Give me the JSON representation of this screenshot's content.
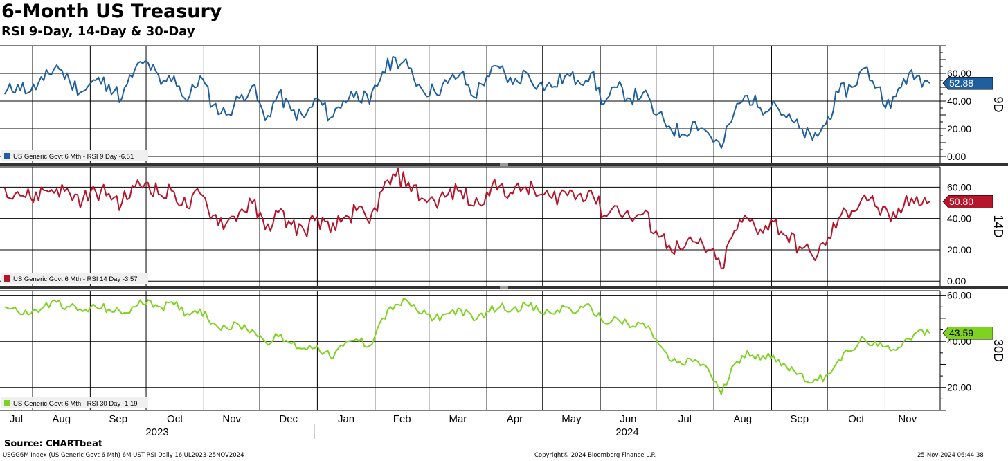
{
  "title": "6-Month US Treasury",
  "subtitle": "RSI 9-Day, 14-Day & 30-Day",
  "source": "Source: CHARTbeat",
  "footer": {
    "left": "USGG6M Index (US Generic Govt 6 Mth) 6M UST RSI  Daily 16JUL2023-25NOV2024",
    "center": "Copyright© 2024 Bloomberg Finance L.P.",
    "right": "25-Nov-2024 06:44:38"
  },
  "chart_data": {
    "type": "line",
    "x_months": [
      "Jul",
      "Aug",
      "Sep",
      "Oct",
      "Nov",
      "Dec",
      "Jan",
      "Feb",
      "Mar",
      "Apr",
      "May",
      "Jun",
      "Jul",
      "Aug",
      "Sep",
      "Oct",
      "Nov"
    ],
    "x_years": [
      "2023",
      "2024"
    ],
    "x_range": [
      "2023-07-16",
      "2024-11-25"
    ],
    "grid": true,
    "panels": [
      {
        "axis_label": "9D",
        "ylim": [
          -5,
          80
        ],
        "yticks": [
          "60.00",
          "40.00",
          "20.00",
          "0.00"
        ],
        "ytick_values": [
          60,
          40,
          20,
          0
        ],
        "color": "#1f5fa0",
        "last_value": "52.88",
        "legend": "US Generic Govt 6 Mth - RSI 9 Day -6.51",
        "series": [
          {
            "d": "2023-07-17",
            "v": 45
          },
          {
            "d": "2023-07-24",
            "v": 52
          },
          {
            "d": "2023-07-31",
            "v": 47
          },
          {
            "d": "2023-08-07",
            "v": 55
          },
          {
            "d": "2023-08-14",
            "v": 66
          },
          {
            "d": "2023-08-21",
            "v": 54
          },
          {
            "d": "2023-08-28",
            "v": 47
          },
          {
            "d": "2023-09-04",
            "v": 55
          },
          {
            "d": "2023-09-11",
            "v": 52
          },
          {
            "d": "2023-09-18",
            "v": 42
          },
          {
            "d": "2023-09-25",
            "v": 63
          },
          {
            "d": "2023-10-02",
            "v": 68
          },
          {
            "d": "2023-10-09",
            "v": 52
          },
          {
            "d": "2023-10-16",
            "v": 58
          },
          {
            "d": "2023-10-23",
            "v": 40
          },
          {
            "d": "2023-10-30",
            "v": 58
          },
          {
            "d": "2023-11-06",
            "v": 37
          },
          {
            "d": "2023-11-13",
            "v": 30
          },
          {
            "d": "2023-11-20",
            "v": 42
          },
          {
            "d": "2023-11-27",
            "v": 51
          },
          {
            "d": "2023-12-04",
            "v": 26
          },
          {
            "d": "2023-12-11",
            "v": 45
          },
          {
            "d": "2023-12-18",
            "v": 33
          },
          {
            "d": "2023-12-25",
            "v": 28
          },
          {
            "d": "2024-01-01",
            "v": 42
          },
          {
            "d": "2024-01-08",
            "v": 28
          },
          {
            "d": "2024-01-15",
            "v": 40
          },
          {
            "d": "2024-01-22",
            "v": 47
          },
          {
            "d": "2024-01-29",
            "v": 38
          },
          {
            "d": "2024-02-05",
            "v": 61
          },
          {
            "d": "2024-02-12",
            "v": 71
          },
          {
            "d": "2024-02-19",
            "v": 64
          },
          {
            "d": "2024-02-26",
            "v": 49
          },
          {
            "d": "2024-03-04",
            "v": 47
          },
          {
            "d": "2024-03-11",
            "v": 53
          },
          {
            "d": "2024-03-18",
            "v": 60
          },
          {
            "d": "2024-03-25",
            "v": 43
          },
          {
            "d": "2024-04-01",
            "v": 58
          },
          {
            "d": "2024-04-08",
            "v": 64
          },
          {
            "d": "2024-04-15",
            "v": 52
          },
          {
            "d": "2024-04-22",
            "v": 61
          },
          {
            "d": "2024-04-29",
            "v": 52
          },
          {
            "d": "2024-05-06",
            "v": 50
          },
          {
            "d": "2024-05-13",
            "v": 58
          },
          {
            "d": "2024-05-20",
            "v": 55
          },
          {
            "d": "2024-05-27",
            "v": 60
          },
          {
            "d": "2024-06-03",
            "v": 38
          },
          {
            "d": "2024-06-10",
            "v": 50
          },
          {
            "d": "2024-06-17",
            "v": 42
          },
          {
            "d": "2024-06-24",
            "v": 46
          },
          {
            "d": "2024-07-01",
            "v": 30
          },
          {
            "d": "2024-07-08",
            "v": 22
          },
          {
            "d": "2024-07-15",
            "v": 16
          },
          {
            "d": "2024-07-22",
            "v": 25
          },
          {
            "d": "2024-07-29",
            "v": 17
          },
          {
            "d": "2024-08-05",
            "v": 6
          },
          {
            "d": "2024-08-12",
            "v": 32
          },
          {
            "d": "2024-08-19",
            "v": 44
          },
          {
            "d": "2024-08-26",
            "v": 35
          },
          {
            "d": "2024-09-02",
            "v": 40
          },
          {
            "d": "2024-09-09",
            "v": 28
          },
          {
            "d": "2024-09-16",
            "v": 20
          },
          {
            "d": "2024-09-23",
            "v": 12
          },
          {
            "d": "2024-09-30",
            "v": 23
          },
          {
            "d": "2024-10-07",
            "v": 46
          },
          {
            "d": "2024-10-14",
            "v": 50
          },
          {
            "d": "2024-10-21",
            "v": 64
          },
          {
            "d": "2024-10-28",
            "v": 50
          },
          {
            "d": "2024-11-04",
            "v": 35
          },
          {
            "d": "2024-11-11",
            "v": 56
          },
          {
            "d": "2024-11-18",
            "v": 58
          },
          {
            "d": "2024-11-25",
            "v": 52.88
          }
        ]
      },
      {
        "axis_label": "14D",
        "ylim": [
          -3,
          73
        ],
        "yticks": [
          "60.00",
          "40.00",
          "20.00",
          "0.00"
        ],
        "ytick_values": [
          60,
          40,
          20,
          0
        ],
        "color": "#b5162c",
        "last_value": "50.80",
        "legend": "US Generic Govt 6 Mth - RSI 14 Day -3.57",
        "series": [
          {
            "d": "2023-07-17",
            "v": 60
          },
          {
            "d": "2023-07-24",
            "v": 57
          },
          {
            "d": "2023-07-31",
            "v": 53
          },
          {
            "d": "2023-08-07",
            "v": 58
          },
          {
            "d": "2023-08-14",
            "v": 59
          },
          {
            "d": "2023-08-21",
            "v": 56
          },
          {
            "d": "2023-08-28",
            "v": 52
          },
          {
            "d": "2023-09-04",
            "v": 57
          },
          {
            "d": "2023-09-11",
            "v": 56
          },
          {
            "d": "2023-09-18",
            "v": 50
          },
          {
            "d": "2023-09-25",
            "v": 60
          },
          {
            "d": "2023-10-02",
            "v": 63
          },
          {
            "d": "2023-10-09",
            "v": 55
          },
          {
            "d": "2023-10-16",
            "v": 57
          },
          {
            "d": "2023-10-23",
            "v": 47
          },
          {
            "d": "2023-10-30",
            "v": 56
          },
          {
            "d": "2023-11-06",
            "v": 42
          },
          {
            "d": "2023-11-13",
            "v": 37
          },
          {
            "d": "2023-11-20",
            "v": 44
          },
          {
            "d": "2023-11-27",
            "v": 50
          },
          {
            "d": "2023-12-04",
            "v": 33
          },
          {
            "d": "2023-12-11",
            "v": 44
          },
          {
            "d": "2023-12-18",
            "v": 36
          },
          {
            "d": "2023-12-25",
            "v": 32
          },
          {
            "d": "2024-01-01",
            "v": 41
          },
          {
            "d": "2024-01-08",
            "v": 31
          },
          {
            "d": "2024-01-15",
            "v": 40
          },
          {
            "d": "2024-01-22",
            "v": 45
          },
          {
            "d": "2024-01-29",
            "v": 37
          },
          {
            "d": "2024-02-05",
            "v": 58
          },
          {
            "d": "2024-02-12",
            "v": 67
          },
          {
            "d": "2024-02-19",
            "v": 63
          },
          {
            "d": "2024-02-26",
            "v": 53
          },
          {
            "d": "2024-03-04",
            "v": 51
          },
          {
            "d": "2024-03-11",
            "v": 55
          },
          {
            "d": "2024-03-18",
            "v": 58
          },
          {
            "d": "2024-03-25",
            "v": 48
          },
          {
            "d": "2024-04-01",
            "v": 57
          },
          {
            "d": "2024-04-08",
            "v": 61
          },
          {
            "d": "2024-04-15",
            "v": 56
          },
          {
            "d": "2024-04-22",
            "v": 60
          },
          {
            "d": "2024-04-29",
            "v": 55
          },
          {
            "d": "2024-05-06",
            "v": 53
          },
          {
            "d": "2024-05-13",
            "v": 57
          },
          {
            "d": "2024-05-20",
            "v": 55
          },
          {
            "d": "2024-05-27",
            "v": 58
          },
          {
            "d": "2024-06-03",
            "v": 42
          },
          {
            "d": "2024-06-10",
            "v": 48
          },
          {
            "d": "2024-06-17",
            "v": 40
          },
          {
            "d": "2024-06-24",
            "v": 43
          },
          {
            "d": "2024-07-01",
            "v": 32
          },
          {
            "d": "2024-07-08",
            "v": 23
          },
          {
            "d": "2024-07-15",
            "v": 20
          },
          {
            "d": "2024-07-22",
            "v": 25
          },
          {
            "d": "2024-07-29",
            "v": 20
          },
          {
            "d": "2024-08-05",
            "v": 8
          },
          {
            "d": "2024-08-12",
            "v": 32
          },
          {
            "d": "2024-08-19",
            "v": 40
          },
          {
            "d": "2024-08-26",
            "v": 33
          },
          {
            "d": "2024-09-02",
            "v": 38
          },
          {
            "d": "2024-09-09",
            "v": 29
          },
          {
            "d": "2024-09-16",
            "v": 22
          },
          {
            "d": "2024-09-23",
            "v": 16
          },
          {
            "d": "2024-09-30",
            "v": 23
          },
          {
            "d": "2024-10-07",
            "v": 40
          },
          {
            "d": "2024-10-14",
            "v": 45
          },
          {
            "d": "2024-10-21",
            "v": 55
          },
          {
            "d": "2024-10-28",
            "v": 47
          },
          {
            "d": "2024-11-04",
            "v": 38
          },
          {
            "d": "2024-11-11",
            "v": 48
          },
          {
            "d": "2024-11-18",
            "v": 54
          },
          {
            "d": "2024-11-25",
            "v": 50.8
          }
        ]
      },
      {
        "axis_label": "30D",
        "ylim": [
          10,
          62
        ],
        "yticks": [
          "60.00",
          "40.00",
          "20.00"
        ],
        "ytick_values": [
          60,
          40,
          20
        ],
        "color": "#7ed321",
        "last_value": "43.59",
        "legend": "US Generic Govt 6 Mth - RSI 30 Day -1.19",
        "series": [
          {
            "d": "2023-07-17",
            "v": 55
          },
          {
            "d": "2023-07-24",
            "v": 53
          },
          {
            "d": "2023-07-31",
            "v": 52
          },
          {
            "d": "2023-08-07",
            "v": 55
          },
          {
            "d": "2023-08-14",
            "v": 57
          },
          {
            "d": "2023-08-21",
            "v": 55
          },
          {
            "d": "2023-08-28",
            "v": 53
          },
          {
            "d": "2023-09-04",
            "v": 55
          },
          {
            "d": "2023-09-11",
            "v": 54
          },
          {
            "d": "2023-09-18",
            "v": 52
          },
          {
            "d": "2023-09-25",
            "v": 55
          },
          {
            "d": "2023-10-02",
            "v": 58
          },
          {
            "d": "2023-10-09",
            "v": 55
          },
          {
            "d": "2023-10-16",
            "v": 56
          },
          {
            "d": "2023-10-23",
            "v": 52
          },
          {
            "d": "2023-10-30",
            "v": 54
          },
          {
            "d": "2023-11-06",
            "v": 48
          },
          {
            "d": "2023-11-13",
            "v": 46
          },
          {
            "d": "2023-11-20",
            "v": 47
          },
          {
            "d": "2023-11-27",
            "v": 45
          },
          {
            "d": "2023-12-04",
            "v": 40
          },
          {
            "d": "2023-12-11",
            "v": 42
          },
          {
            "d": "2023-12-18",
            "v": 39
          },
          {
            "d": "2023-12-25",
            "v": 37
          },
          {
            "d": "2024-01-01",
            "v": 38
          },
          {
            "d": "2024-01-08",
            "v": 33
          },
          {
            "d": "2024-01-15",
            "v": 38
          },
          {
            "d": "2024-01-22",
            "v": 41
          },
          {
            "d": "2024-01-29",
            "v": 38
          },
          {
            "d": "2024-02-05",
            "v": 50
          },
          {
            "d": "2024-02-12",
            "v": 56
          },
          {
            "d": "2024-02-19",
            "v": 57
          },
          {
            "d": "2024-02-26",
            "v": 52
          },
          {
            "d": "2024-03-04",
            "v": 50
          },
          {
            "d": "2024-03-11",
            "v": 52
          },
          {
            "d": "2024-03-18",
            "v": 54
          },
          {
            "d": "2024-03-25",
            "v": 49
          },
          {
            "d": "2024-04-01",
            "v": 53
          },
          {
            "d": "2024-04-08",
            "v": 55
          },
          {
            "d": "2024-04-15",
            "v": 54
          },
          {
            "d": "2024-04-22",
            "v": 56
          },
          {
            "d": "2024-04-29",
            "v": 53
          },
          {
            "d": "2024-05-06",
            "v": 52
          },
          {
            "d": "2024-05-13",
            "v": 55
          },
          {
            "d": "2024-05-20",
            "v": 53
          },
          {
            "d": "2024-05-27",
            "v": 55
          },
          {
            "d": "2024-06-03",
            "v": 48
          },
          {
            "d": "2024-06-10",
            "v": 50
          },
          {
            "d": "2024-06-17",
            "v": 46
          },
          {
            "d": "2024-06-24",
            "v": 48
          },
          {
            "d": "2024-07-01",
            "v": 41
          },
          {
            "d": "2024-07-08",
            "v": 32
          },
          {
            "d": "2024-07-15",
            "v": 30
          },
          {
            "d": "2024-07-22",
            "v": 32
          },
          {
            "d": "2024-07-29",
            "v": 28
          },
          {
            "d": "2024-08-05",
            "v": 17
          },
          {
            "d": "2024-08-12",
            "v": 30
          },
          {
            "d": "2024-08-19",
            "v": 36
          },
          {
            "d": "2024-08-26",
            "v": 32
          },
          {
            "d": "2024-09-02",
            "v": 34
          },
          {
            "d": "2024-09-09",
            "v": 29
          },
          {
            "d": "2024-09-16",
            "v": 26
          },
          {
            "d": "2024-09-23",
            "v": 22
          },
          {
            "d": "2024-09-30",
            "v": 25
          },
          {
            "d": "2024-10-07",
            "v": 32
          },
          {
            "d": "2024-10-14",
            "v": 36
          },
          {
            "d": "2024-10-21",
            "v": 41
          },
          {
            "d": "2024-10-28",
            "v": 38
          },
          {
            "d": "2024-11-04",
            "v": 36
          },
          {
            "d": "2024-11-11",
            "v": 40
          },
          {
            "d": "2024-11-18",
            "v": 44
          },
          {
            "d": "2024-11-25",
            "v": 43.59
          }
        ]
      }
    ]
  }
}
